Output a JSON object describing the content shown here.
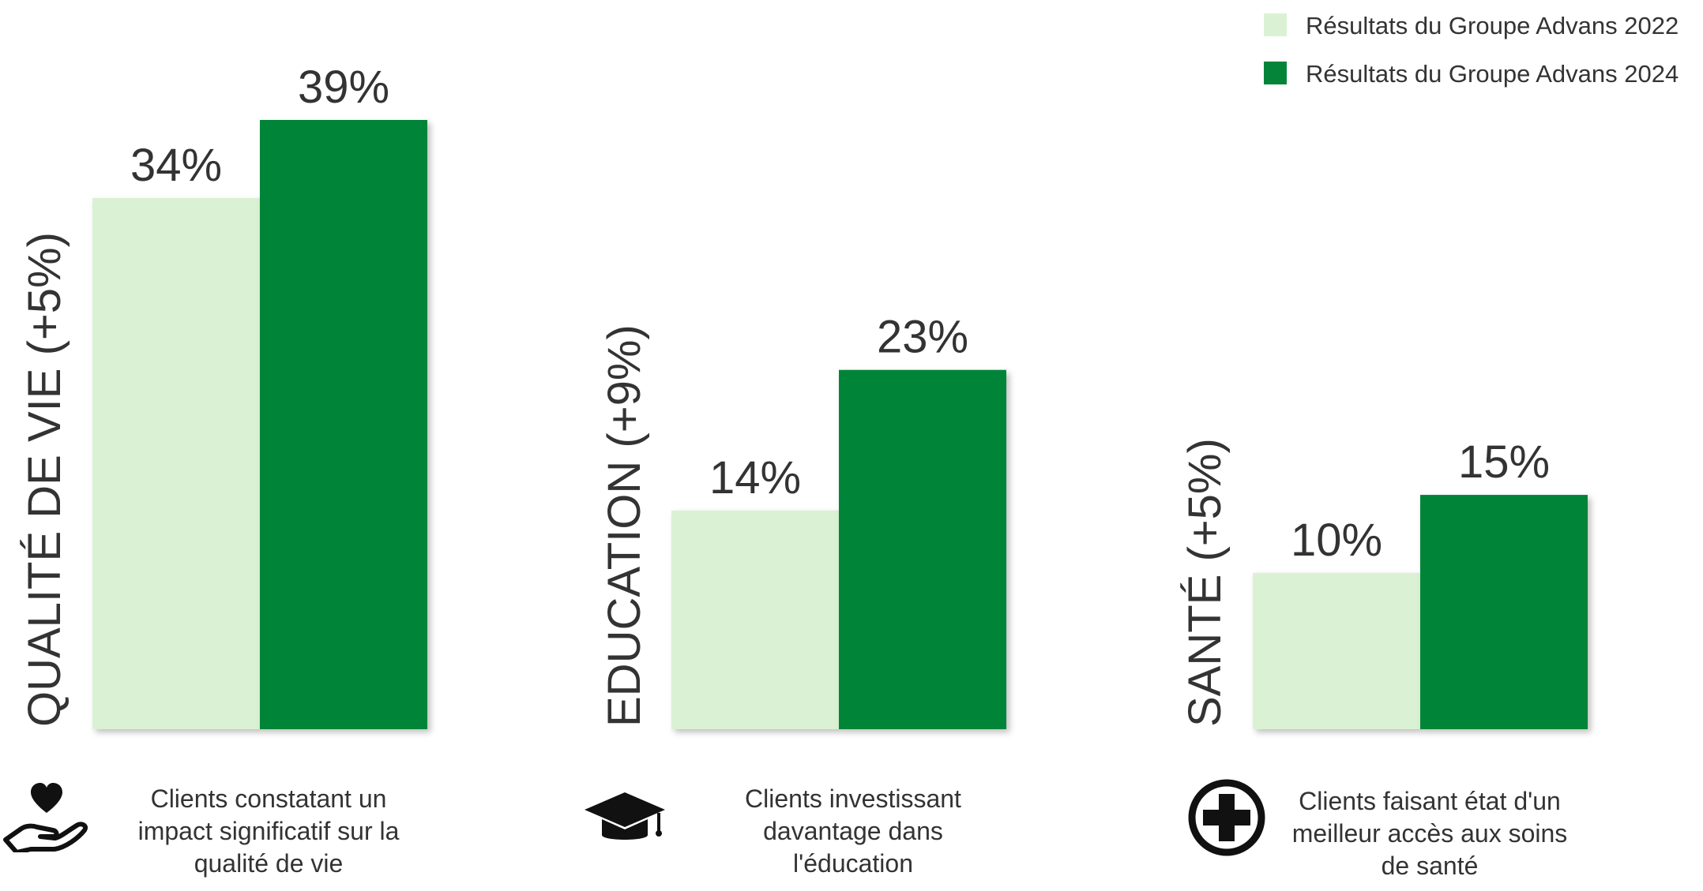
{
  "chart_data": {
    "type": "bar",
    "categories": [
      "QUALITÉ DE VIE (+5%)",
      "EDUCATION (+9%)",
      "SANTÉ (+5%)"
    ],
    "series": [
      {
        "name": "Résultats du Groupe Advans 2022",
        "values": [
          34,
          14,
          10
        ],
        "labels": [
          "34%",
          "14%",
          "10%"
        ]
      },
      {
        "name": "Résultats du Groupe Advans 2024",
        "values": [
          39,
          23,
          15
        ],
        "labels": [
          "39%",
          "23%",
          "15%"
        ]
      }
    ],
    "colors": {
      "series_2022": "#daf2d3",
      "series_2024": "#038438"
    },
    "ylim": [
      0,
      39
    ],
    "legend_position": "top-right",
    "grid": false
  },
  "descriptions": [
    {
      "icon": "heart-in-hand-icon",
      "lines": [
        "Clients constatant un",
        "impact significatif sur la",
        "qualité de vie"
      ]
    },
    {
      "icon": "graduation-cap-icon",
      "lines": [
        "Clients investissant",
        "davantage dans",
        "l'éducation"
      ]
    },
    {
      "icon": "plus-circle-icon",
      "lines": [
        "Clients faisant état d'un",
        "meilleur accès aux soins",
        "de santé"
      ]
    }
  ]
}
